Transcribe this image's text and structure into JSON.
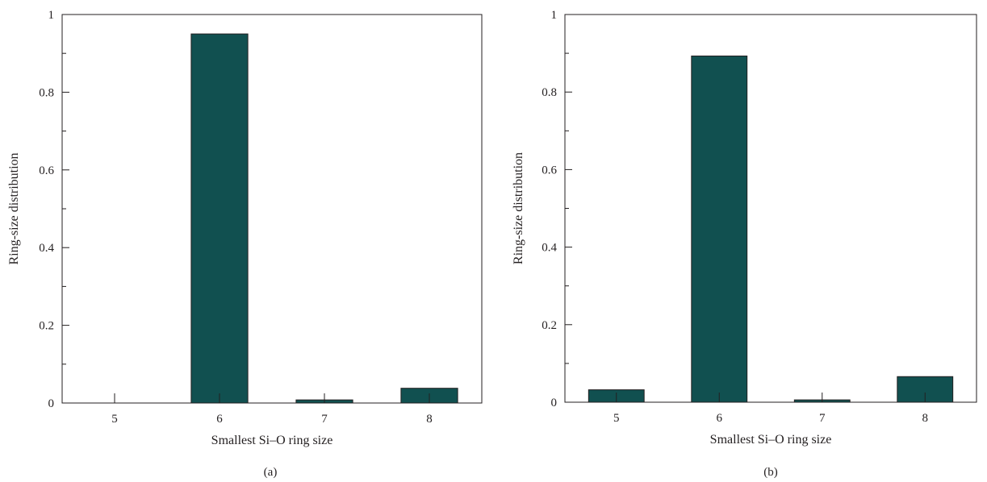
{
  "colors": {
    "bar": "#115050",
    "axis": "#231f20",
    "background": "#ffffff"
  },
  "chart_data": [
    {
      "type": "bar",
      "panel_label": "(a)",
      "categories": [
        "5",
        "6",
        "7",
        "8"
      ],
      "values": [
        0.0,
        0.95,
        0.008,
        0.038
      ],
      "title": "",
      "xlabel": "Smallest Si–O ring size",
      "ylabel": "Ring-size distribution",
      "ylim": [
        0,
        1
      ],
      "yticks": [
        "0",
        "0.2",
        "0.4",
        "0.6",
        "0.8",
        "1"
      ],
      "grid": false,
      "legend": "none"
    },
    {
      "type": "bar",
      "panel_label": "(b)",
      "categories": [
        "5",
        "6",
        "7",
        "8"
      ],
      "values": [
        0.032,
        0.893,
        0.006,
        0.066
      ],
      "title": "",
      "xlabel": "Smallest Si–O ring size",
      "ylabel": "Ring-size distribution",
      "ylim": [
        0,
        1
      ],
      "yticks": [
        "0",
        "0.2",
        "0.4",
        "0.6",
        "0.8",
        "1"
      ],
      "grid": false,
      "legend": "none"
    }
  ]
}
